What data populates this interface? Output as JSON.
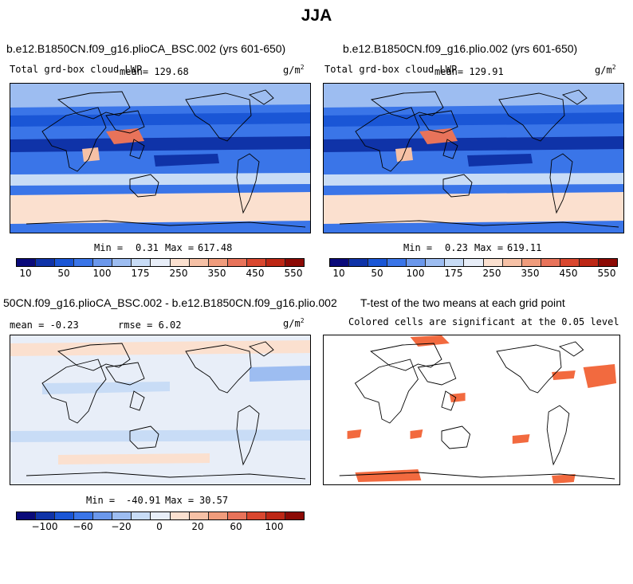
{
  "figure": {
    "title": "JJA"
  },
  "chart_data": [
    {
      "type": "heatmap",
      "title": "b.e12.B1850CN.f09_g16.plioCA_BSC.002 (yrs 601-650)",
      "subtitle": "Total grd-box cloud LWP",
      "mean_label": "mean= 129.68",
      "units_base": "g/m",
      "units_exp": "2",
      "min_label": "Min =",
      "min_value": "0.31",
      "max_label": "Max =",
      "max_value": "617.48",
      "colorbar_ticks": [
        "10",
        "50",
        "100",
        "175",
        "250",
        "350",
        "450",
        "550"
      ],
      "colorbar_colors": [
        "#0a0a7a",
        "#0f33a8",
        "#1a56d6",
        "#3a75e8",
        "#6b98ec",
        "#9dbdf1",
        "#c8dcf6",
        "#e8eef8",
        "#fbe0cf",
        "#f6c1a6",
        "#f09c7c",
        "#e8735a",
        "#d9472f",
        "#bd2715",
        "#8c0a05"
      ]
    },
    {
      "type": "heatmap",
      "title": "b.e12.B1850CN.f09_g16.plio.002 (yrs 601-650)",
      "subtitle": "Total grd-box cloud LWP",
      "mean_label": "mean= 129.91",
      "units_base": "g/m",
      "units_exp": "2",
      "min_label": "Min =",
      "min_value": "0.23",
      "max_label": "Max =",
      "max_value": "619.11",
      "colorbar_ticks": [
        "10",
        "50",
        "100",
        "175",
        "250",
        "350",
        "450",
        "550"
      ],
      "colorbar_colors": [
        "#0a0a7a",
        "#0f33a8",
        "#1a56d6",
        "#3a75e8",
        "#6b98ec",
        "#9dbdf1",
        "#c8dcf6",
        "#e8eef8",
        "#fbe0cf",
        "#f6c1a6",
        "#f09c7c",
        "#e8735a",
        "#d9472f",
        "#bd2715",
        "#8c0a05"
      ]
    },
    {
      "type": "heatmap",
      "title": "50CN.f09_g16.plioCA_BSC.002 - b.e12.B1850CN.f09_g16.plio.002",
      "mean_label": "mean =  -0.23",
      "rmse_label": "rmse =   6.02",
      "units_base": "g/m",
      "units_exp": "2",
      "min_label": "Min =",
      "min_value": "-40.91",
      "max_label": "Max =",
      "max_value": "30.57",
      "colorbar_ticks": [
        "−100",
        "−60",
        "−20",
        "0",
        "20",
        "60",
        "100"
      ],
      "colorbar_colors": [
        "#0a0a7a",
        "#0f33a8",
        "#1a56d6",
        "#3a75e8",
        "#6b98ec",
        "#9dbdf1",
        "#c8dcf6",
        "#e8eef8",
        "#fbe0cf",
        "#f6c1a6",
        "#f09c7c",
        "#e8735a",
        "#d9472f",
        "#bd2715",
        "#8c0a05"
      ]
    },
    {
      "type": "heatmap",
      "title": "T-test of the two means at each grid point",
      "subtitle": "Colored cells are significant at the 0.05 level",
      "highlight_color": "#f26a3f"
    }
  ]
}
